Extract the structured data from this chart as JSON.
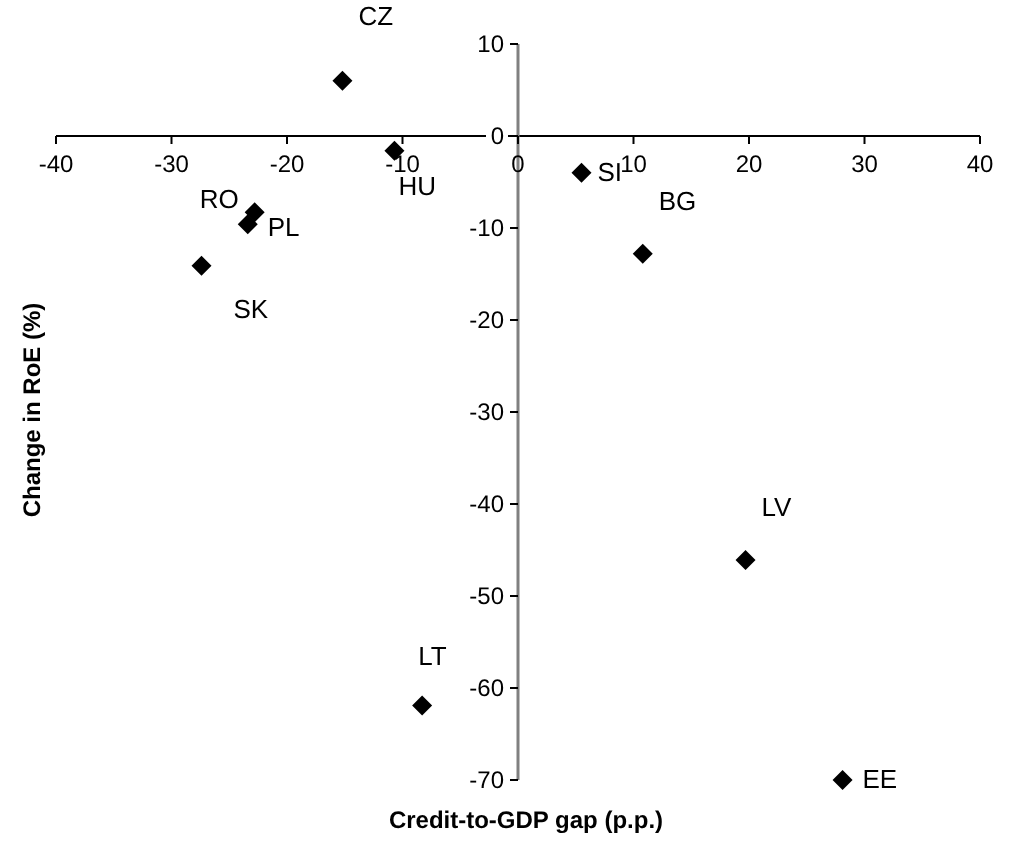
{
  "chart_data": {
    "type": "scatter",
    "xlabel": "Credit-to-GDP gap (p.p.)",
    "ylabel": "Change in RoE (%)",
    "x": [
      -15.2,
      -10.7,
      5.5,
      10.8,
      -22.8,
      -23.4,
      -27.4,
      -8.3,
      19.7,
      28.1
    ],
    "values": [
      6,
      -1.6,
      -4,
      -12.8,
      -8.3,
      -9.6,
      -14.1,
      -61.9,
      -46.1,
      -70
    ],
    "color": "#000000",
    "marker": "diamond",
    "xlim": [
      -40,
      40
    ],
    "xticks": [
      -40,
      -30,
      -20,
      -10,
      0,
      10,
      20,
      30,
      40
    ],
    "ylim": [
      -70,
      10
    ],
    "yticks": [
      -70,
      -60,
      -50,
      -40,
      -30,
      -20,
      -10,
      0,
      10
    ],
    "grid": false,
    "annotations": [
      {
        "text": "CZ",
        "x": -15.2,
        "y": 6
      },
      {
        "text": "HU",
        "x": -10.7,
        "y": -1.6
      },
      {
        "text": "SI",
        "x": 5.5,
        "y": -4
      },
      {
        "text": "BG",
        "x": 10.8,
        "y": -12.8
      },
      {
        "text": "RO",
        "x": -22.8,
        "y": -8.3
      },
      {
        "text": "PL",
        "x": -23.4,
        "y": -9.6
      },
      {
        "text": "SK",
        "x": -27.4,
        "y": -14.1
      },
      {
        "text": "LT",
        "x": -8.3,
        "y": -61.9
      },
      {
        "text": "LV",
        "x": 19.7,
        "y": -46.1
      },
      {
        "text": "EE",
        "x": 28.1,
        "y": -70
      }
    ]
  }
}
